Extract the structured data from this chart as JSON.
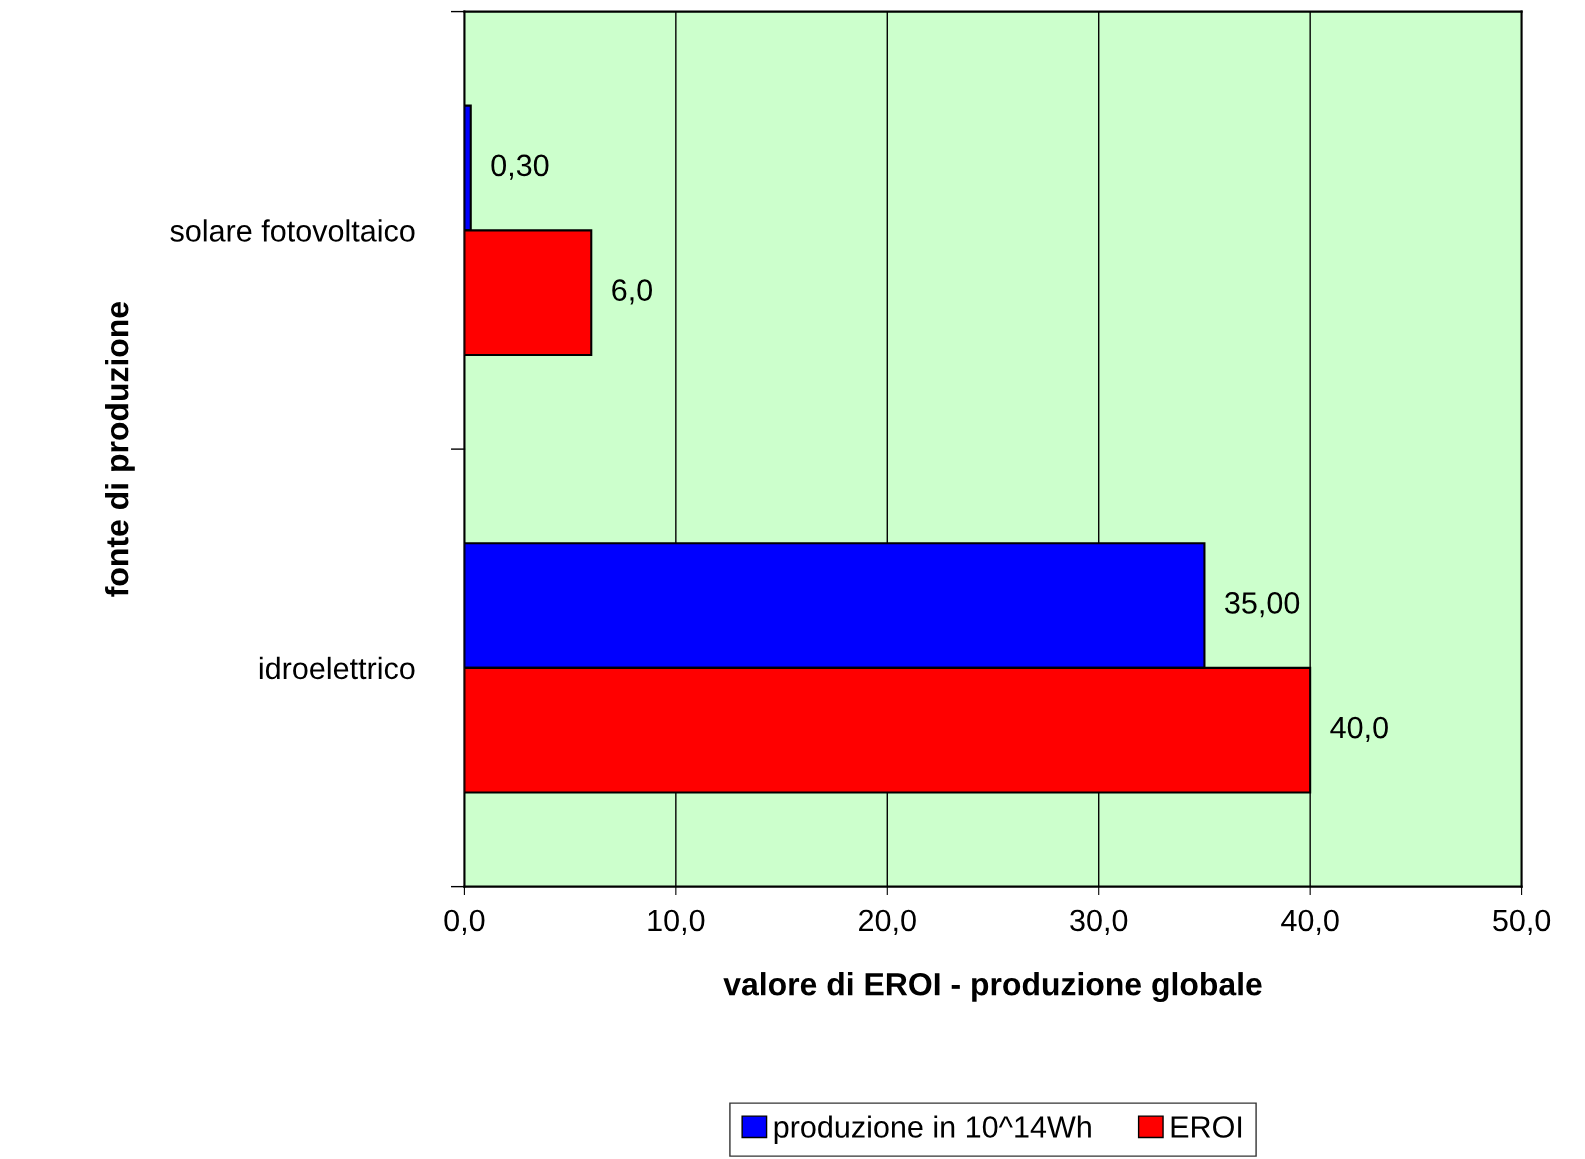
{
  "chart_data": {
    "type": "bar",
    "orientation": "horizontal",
    "categories": [
      "solare fotovoltaico",
      "idroelettrico"
    ],
    "series": [
      {
        "name": "produzione in 10^14Wh",
        "color": "#0000ff",
        "values": [
          0.3,
          35.0
        ],
        "value_labels": [
          "0,30",
          "35,00"
        ]
      },
      {
        "name": "EROI",
        "color": "#ff0000",
        "values": [
          6.0,
          40.0
        ],
        "value_labels": [
          "6,0",
          "40,0"
        ]
      }
    ],
    "xlabel": "valore di EROI - produzione globale",
    "ylabel": "fonte di produzione",
    "xlim": [
      0,
      50
    ],
    "xticks": [
      {
        "value": 0,
        "label": "0,0"
      },
      {
        "value": 10,
        "label": "10,0"
      },
      {
        "value": 20,
        "label": "20,0"
      },
      {
        "value": 30,
        "label": "30,0"
      },
      {
        "value": 40,
        "label": "40,0"
      },
      {
        "value": 50,
        "label": "50,0"
      }
    ],
    "grid": "x",
    "legend": "bottom"
  }
}
